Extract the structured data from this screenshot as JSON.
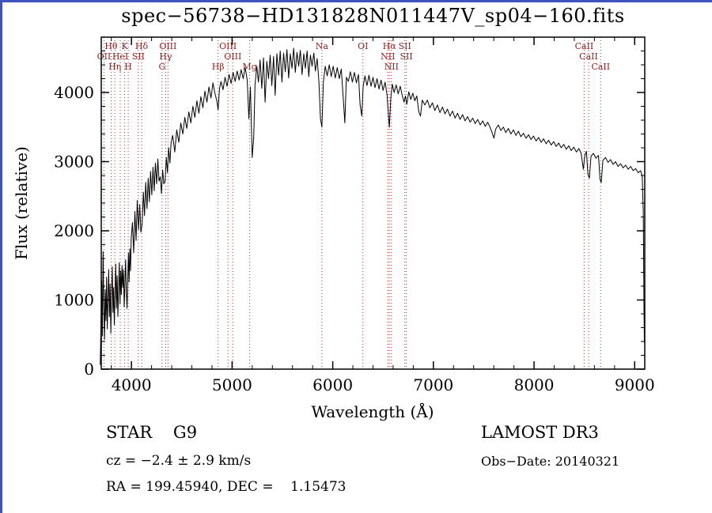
{
  "window": {
    "border_color": "#3f52c1",
    "background": "#ffffff"
  },
  "chart_data": {
    "type": "line",
    "title": "spec−56738−HD131828N011447V_sp04−160.fits",
    "xlabel": "Wavelength (Å)",
    "ylabel": "Flux (relative)",
    "xlim": [
      3700,
      9100
    ],
    "ylim": [
      0,
      4800
    ],
    "xticks": [
      4000,
      5000,
      6000,
      7000,
      8000,
      9000
    ],
    "yticks": [
      0,
      1000,
      2000,
      3000,
      4000
    ],
    "x_minor_step": 200,
    "y_minor_step": 200,
    "grid": false,
    "line_color": "#000000",
    "spectral_line_color": "#b03030",
    "spectral_label_color": "#8b1e1e",
    "spectral_lines": [
      {
        "label": "OII",
        "wavelength": 3727,
        "row": 2
      },
      {
        "label": "Hθ",
        "wavelength": 3798,
        "row": 1
      },
      {
        "label": "Hη",
        "wavelength": 3835,
        "row": 3
      },
      {
        "label": "HeI",
        "wavelength": 3889,
        "row": 2
      },
      {
        "label": "K",
        "wavelength": 3933,
        "row": 1
      },
      {
        "label": "H",
        "wavelength": 3968,
        "row": 3
      },
      {
        "label": "SII",
        "wavelength": 4068,
        "row": 2
      },
      {
        "label": "Hδ",
        "wavelength": 4101,
        "row": 1
      },
      {
        "label": "G",
        "wavelength": 4304,
        "row": 3
      },
      {
        "label": "Hγ",
        "wavelength": 4340,
        "row": 2
      },
      {
        "label": "OIII",
        "wavelength": 4363,
        "row": 1
      },
      {
        "label": "Hβ",
        "wavelength": 4861,
        "row": 3
      },
      {
        "label": "OIII",
        "wavelength": 4959,
        "row": 1
      },
      {
        "label": "OIII",
        "wavelength": 5007,
        "row": 2
      },
      {
        "label": "Mg",
        "wavelength": 5175,
        "row": 3
      },
      {
        "label": "Na",
        "wavelength": 5892,
        "row": 1
      },
      {
        "label": "OI",
        "wavelength": 6300,
        "row": 1
      },
      {
        "label": "NII",
        "wavelength": 6548,
        "row": 2
      },
      {
        "label": "Hα",
        "wavelength": 6563,
        "row": 1
      },
      {
        "label": "NII",
        "wavelength": 6583,
        "row": 3
      },
      {
        "label": "SII",
        "wavelength": 6716,
        "row": 1
      },
      {
        "label": "SII",
        "wavelength": 6731,
        "row": 2
      },
      {
        "label": "CaII",
        "wavelength": 8498,
        "row": 1
      },
      {
        "label": "CaII",
        "wavelength": 8542,
        "row": 2
      },
      {
        "label": "CaII",
        "wavelength": 8662,
        "row": 3
      }
    ],
    "spectrum": [
      [
        3690,
        60
      ],
      [
        3697,
        620
      ],
      [
        3704,
        1280
      ],
      [
        3711,
        480
      ],
      [
        3718,
        1700
      ],
      [
        3725,
        900
      ],
      [
        3732,
        430
      ],
      [
        3739,
        1150
      ],
      [
        3746,
        700
      ],
      [
        3753,
        1330
      ],
      [
        3760,
        580
      ],
      [
        3767,
        1020
      ],
      [
        3774,
        1440
      ],
      [
        3781,
        760
      ],
      [
        3788,
        1230
      ],
      [
        3795,
        520
      ],
      [
        3802,
        1060
      ],
      [
        3809,
        1480
      ],
      [
        3816,
        820
      ],
      [
        3823,
        1180
      ],
      [
        3830,
        640
      ],
      [
        3837,
        1100
      ],
      [
        3844,
        1520
      ],
      [
        3851,
        880
      ],
      [
        3858,
        1350
      ],
      [
        3865,
        760
      ],
      [
        3872,
        1160
      ],
      [
        3879,
        1540
      ],
      [
        3886,
        940
      ],
      [
        3893,
        1420
      ],
      [
        3900,
        1080
      ],
      [
        3907,
        1500
      ],
      [
        3914,
        1180
      ],
      [
        3921,
        1440
      ],
      [
        3928,
        900
      ],
      [
        3935,
        1240
      ],
      [
        3942,
        1580
      ],
      [
        3949,
        1120
      ],
      [
        3956,
        880
      ],
      [
        3963,
        1300
      ],
      [
        3970,
        1680
      ],
      [
        3977,
        1260
      ],
      [
        3984,
        1740
      ],
      [
        3991,
        1420
      ],
      [
        3998,
        1900
      ],
      [
        4010,
        2120
      ],
      [
        4022,
        1680
      ],
      [
        4034,
        2280
      ],
      [
        4046,
        1860
      ],
      [
        4058,
        2440
      ],
      [
        4070,
        2020
      ],
      [
        4082,
        2380
      ],
      [
        4094,
        1980
      ],
      [
        4106,
        2100
      ],
      [
        4118,
        2560
      ],
      [
        4130,
        2220
      ],
      [
        4142,
        2700
      ],
      [
        4154,
        2320
      ],
      [
        4166,
        2760
      ],
      [
        4178,
        2420
      ],
      [
        4190,
        2860
      ],
      [
        4202,
        2520
      ],
      [
        4214,
        2920
      ],
      [
        4226,
        2580
      ],
      [
        4238,
        2980
      ],
      [
        4250,
        2680
      ],
      [
        4262,
        3040
      ],
      [
        4274,
        2720
      ],
      [
        4286,
        2780
      ],
      [
        4298,
        2540
      ],
      [
        4310,
        2880
      ],
      [
        4322,
        2680
      ],
      [
        4334,
        2720
      ],
      [
        4346,
        3060
      ],
      [
        4358,
        2840
      ],
      [
        4370,
        3200
      ],
      [
        4382,
        2980
      ],
      [
        4394,
        3280
      ],
      [
        4410,
        3380
      ],
      [
        4430,
        3140
      ],
      [
        4450,
        3460
      ],
      [
        4470,
        3280
      ],
      [
        4490,
        3560
      ],
      [
        4510,
        3400
      ],
      [
        4530,
        3640
      ],
      [
        4550,
        3480
      ],
      [
        4570,
        3720
      ],
      [
        4590,
        3560
      ],
      [
        4610,
        3800
      ],
      [
        4630,
        3640
      ],
      [
        4650,
        3880
      ],
      [
        4670,
        3700
      ],
      [
        4690,
        3940
      ],
      [
        4710,
        3780
      ],
      [
        4730,
        4020
      ],
      [
        4750,
        3860
      ],
      [
        4770,
        4080
      ],
      [
        4790,
        3920
      ],
      [
        4810,
        4140
      ],
      [
        4830,
        3980
      ],
      [
        4848,
        3880
      ],
      [
        4861,
        3750
      ],
      [
        4875,
        4060
      ],
      [
        4890,
        4160
      ],
      [
        4910,
        4040
      ],
      [
        4930,
        4220
      ],
      [
        4950,
        4090
      ],
      [
        4970,
        4260
      ],
      [
        4990,
        4130
      ],
      [
        5010,
        4290
      ],
      [
        5030,
        4160
      ],
      [
        5050,
        4310
      ],
      [
        5070,
        4180
      ],
      [
        5090,
        4330
      ],
      [
        5110,
        4200
      ],
      [
        5130,
        4360
      ],
      [
        5150,
        4180
      ],
      [
        5167,
        3620
      ],
      [
        5182,
        4080
      ],
      [
        5200,
        3060
      ],
      [
        5215,
        3350
      ],
      [
        5228,
        4120
      ],
      [
        5245,
        4380
      ],
      [
        5262,
        4150
      ],
      [
        5278,
        4470
      ],
      [
        5295,
        4060
      ],
      [
        5312,
        4500
      ],
      [
        5328,
        3860
      ],
      [
        5345,
        4450
      ],
      [
        5362,
        4200
      ],
      [
        5378,
        4540
      ],
      [
        5395,
        4100
      ],
      [
        5412,
        4520
      ],
      [
        5428,
        3960
      ],
      [
        5445,
        4560
      ],
      [
        5462,
        4250
      ],
      [
        5478,
        4600
      ],
      [
        5495,
        4150
      ],
      [
        5512,
        4570
      ],
      [
        5528,
        4300
      ],
      [
        5545,
        4620
      ],
      [
        5562,
        4210
      ],
      [
        5578,
        4560
      ],
      [
        5595,
        4350
      ],
      [
        5612,
        4640
      ],
      [
        5628,
        4290
      ],
      [
        5645,
        4580
      ],
      [
        5662,
        4380
      ],
      [
        5678,
        4610
      ],
      [
        5695,
        4260
      ],
      [
        5712,
        4560
      ],
      [
        5728,
        4350
      ],
      [
        5745,
        4600
      ],
      [
        5762,
        4230
      ],
      [
        5778,
        4540
      ],
      [
        5795,
        4380
      ],
      [
        5812,
        4570
      ],
      [
        5828,
        4310
      ],
      [
        5845,
        4490
      ],
      [
        5862,
        4160
      ],
      [
        5878,
        3620
      ],
      [
        5892,
        3500
      ],
      [
        5906,
        4140
      ],
      [
        5925,
        4380
      ],
      [
        5945,
        4240
      ],
      [
        5965,
        4400
      ],
      [
        5985,
        4230
      ],
      [
        6005,
        4380
      ],
      [
        6025,
        4210
      ],
      [
        6045,
        4360
      ],
      [
        6065,
        4200
      ],
      [
        6085,
        4340
      ],
      [
        6105,
        3900
      ],
      [
        6120,
        3560
      ],
      [
        6135,
        4220
      ],
      [
        6155,
        4160
      ],
      [
        6175,
        4300
      ],
      [
        6195,
        4150
      ],
      [
        6215,
        4290
      ],
      [
        6235,
        4140
      ],
      [
        6255,
        4260
      ],
      [
        6272,
        3820
      ],
      [
        6288,
        3660
      ],
      [
        6302,
        4080
      ],
      [
        6320,
        4240
      ],
      [
        6340,
        4100
      ],
      [
        6360,
        4250
      ],
      [
        6380,
        4090
      ],
      [
        6400,
        4220
      ],
      [
        6420,
        4070
      ],
      [
        6440,
        4200
      ],
      [
        6460,
        4050
      ],
      [
        6480,
        4180
      ],
      [
        6500,
        4030
      ],
      [
        6520,
        4150
      ],
      [
        6540,
        3960
      ],
      [
        6555,
        3640
      ],
      [
        6563,
        3500
      ],
      [
        6577,
        3920
      ],
      [
        6592,
        4120
      ],
      [
        6610,
        4000
      ],
      [
        6630,
        4110
      ],
      [
        6650,
        3980
      ],
      [
        6670,
        4090
      ],
      [
        6690,
        3960
      ],
      [
        6708,
        3860
      ],
      [
        6722,
        3950
      ],
      [
        6736,
        3830
      ],
      [
        6755,
        4010
      ],
      [
        6775,
        3900
      ],
      [
        6795,
        3990
      ],
      [
        6815,
        3880
      ],
      [
        6835,
        3950
      ],
      [
        6855,
        3720
      ],
      [
        6872,
        3660
      ],
      [
        6890,
        3890
      ],
      [
        6915,
        3820
      ],
      [
        6940,
        3890
      ],
      [
        6965,
        3780
      ],
      [
        6990,
        3850
      ],
      [
        7015,
        3740
      ],
      [
        7040,
        3820
      ],
      [
        7065,
        3710
      ],
      [
        7090,
        3790
      ],
      [
        7115,
        3690
      ],
      [
        7140,
        3760
      ],
      [
        7165,
        3660
      ],
      [
        7190,
        3730
      ],
      [
        7215,
        3630
      ],
      [
        7240,
        3700
      ],
      [
        7265,
        3610
      ],
      [
        7290,
        3680
      ],
      [
        7315,
        3590
      ],
      [
        7340,
        3650
      ],
      [
        7365,
        3570
      ],
      [
        7390,
        3630
      ],
      [
        7415,
        3550
      ],
      [
        7440,
        3610
      ],
      [
        7465,
        3530
      ],
      [
        7490,
        3590
      ],
      [
        7515,
        3510
      ],
      [
        7540,
        3570
      ],
      [
        7565,
        3490
      ],
      [
        7588,
        3400
      ],
      [
        7602,
        3340
      ],
      [
        7618,
        3470
      ],
      [
        7645,
        3530
      ],
      [
        7670,
        3450
      ],
      [
        7695,
        3500
      ],
      [
        7720,
        3420
      ],
      [
        7745,
        3480
      ],
      [
        7770,
        3400
      ],
      [
        7795,
        3460
      ],
      [
        7820,
        3380
      ],
      [
        7845,
        3440
      ],
      [
        7870,
        3360
      ],
      [
        7895,
        3410
      ],
      [
        7920,
        3340
      ],
      [
        7945,
        3390
      ],
      [
        7970,
        3320
      ],
      [
        7995,
        3370
      ],
      [
        8020,
        3300
      ],
      [
        8045,
        3350
      ],
      [
        8070,
        3280
      ],
      [
        8095,
        3330
      ],
      [
        8120,
        3260
      ],
      [
        8145,
        3310
      ],
      [
        8170,
        3240
      ],
      [
        8195,
        3290
      ],
      [
        8220,
        3220
      ],
      [
        8245,
        3270
      ],
      [
        8270,
        3200
      ],
      [
        8295,
        3250
      ],
      [
        8320,
        3180
      ],
      [
        8345,
        3230
      ],
      [
        8370,
        3160
      ],
      [
        8395,
        3210
      ],
      [
        8420,
        3140
      ],
      [
        8445,
        3190
      ],
      [
        8468,
        3120
      ],
      [
        8490,
        2890
      ],
      [
        8505,
        3090
      ],
      [
        8520,
        3150
      ],
      [
        8536,
        2820
      ],
      [
        8550,
        2760
      ],
      [
        8566,
        3080
      ],
      [
        8590,
        3120
      ],
      [
        8615,
        3050
      ],
      [
        8640,
        3090
      ],
      [
        8656,
        2740
      ],
      [
        8668,
        2700
      ],
      [
        8684,
        3020
      ],
      [
        8710,
        3060
      ],
      [
        8735,
        2990
      ],
      [
        8760,
        3030
      ],
      [
        8785,
        2960
      ],
      [
        8810,
        3000
      ],
      [
        8835,
        2930
      ],
      [
        8860,
        2970
      ],
      [
        8885,
        2910
      ],
      [
        8910,
        2950
      ],
      [
        8935,
        2890
      ],
      [
        8960,
        2930
      ],
      [
        8985,
        2870
      ],
      [
        9010,
        2900
      ],
      [
        9035,
        2840
      ],
      [
        9058,
        2870
      ],
      [
        9075,
        2790
      ],
      [
        9085,
        2300
      ],
      [
        9092,
        900
      ],
      [
        9096,
        380
      ]
    ]
  },
  "footer": {
    "class_label": "STAR    G9",
    "survey": "LAMOST DR3",
    "cz": "cz = −2.4 ± 2.9 km/s",
    "obs_date": "Obs−Date: 20140321",
    "ra_dec": "RA = 199.45940, DEC =    1.15473"
  }
}
